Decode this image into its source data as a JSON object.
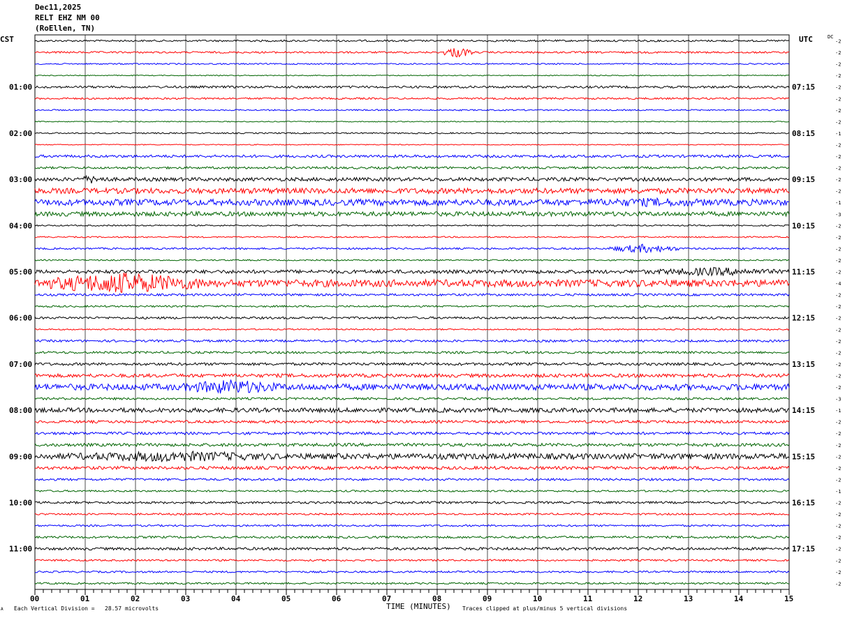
{
  "header": {
    "date": "Dec11,2025",
    "station": "RELT EHZ NM 00",
    "location": "(RoEllen, TN)"
  },
  "left_zone": "CST",
  "right_zone": "UTC",
  "dc_label": "DC",
  "footer": {
    "x_axis_title": "TIME (MINUTES)",
    "scale_note": "Each Vertical Division =   28.57 microvolts",
    "clip_note": "Traces clipped at plus/minus 5 vertical divisions",
    "corner_mark": "A"
  },
  "colors": {
    "trace_cycle": [
      "#000000",
      "#ff0000",
      "#0000ff",
      "#006400"
    ],
    "grid": "#000000",
    "background": "#ffffff"
  },
  "chart_data": {
    "type": "line",
    "title": "RELT EHZ NM 00",
    "xlabel": "TIME (MINUTES)",
    "xlim": [
      0,
      15
    ],
    "x_ticks": [
      "00",
      "01",
      "02",
      "03",
      "04",
      "05",
      "06",
      "07",
      "08",
      "09",
      "10",
      "11",
      "12",
      "13",
      "14",
      "15"
    ],
    "left_hour_labels": [
      "01:00",
      "02:00",
      "03:00",
      "04:00",
      "05:00",
      "06:00",
      "07:00",
      "08:00",
      "09:00",
      "10:00",
      "11:00"
    ],
    "right_hour_labels": [
      "07:15",
      "08:15",
      "09:15",
      "10:15",
      "11:15",
      "12:15",
      "13:15",
      "14:15",
      "15:15",
      "16:15",
      "17:15"
    ],
    "traces_per_hour": 4,
    "minutes_per_trace": 15,
    "trace_count": 48,
    "dc_offsets": [
      -2,
      -2,
      -2,
      -2,
      -2,
      -2,
      -2,
      -2,
      -1,
      -2,
      -2,
      -2,
      -2,
      -2,
      -1,
      -3,
      -2,
      -2,
      -2,
      -2,
      -2,
      -4,
      -2,
      -2,
      -2,
      -2,
      -2,
      -2,
      -2,
      -2,
      -2,
      -3,
      -1,
      -2,
      -2,
      -2,
      -2,
      -2,
      -2,
      -1,
      -2,
      -2,
      -2,
      -2,
      -2,
      -2,
      -2,
      -2
    ],
    "trace_amplitude_divisions": [
      0.4,
      0.4,
      0.3,
      0.2,
      0.5,
      0.4,
      0.3,
      0.2,
      0.3,
      0.2,
      0.6,
      0.5,
      0.8,
      1.2,
      1.4,
      1.0,
      0.3,
      0.3,
      0.4,
      0.3,
      0.8,
      1.6,
      0.5,
      0.4,
      0.5,
      0.3,
      0.5,
      0.5,
      0.6,
      0.8,
      1.4,
      0.5,
      1.0,
      0.6,
      0.6,
      0.7,
      1.3,
      0.7,
      0.5,
      0.4,
      0.5,
      0.4,
      0.4,
      0.5,
      0.6,
      0.4,
      0.4,
      0.4
    ],
    "events": [
      {
        "trace": 1,
        "start_min": 8.1,
        "end_min": 8.7,
        "peak_divisions": 2.5
      },
      {
        "trace": 12,
        "start_min": 0.8,
        "end_min": 1.5,
        "peak_divisions": 2.0
      },
      {
        "trace": 14,
        "start_min": 9.5,
        "end_min": 15.0,
        "peak_divisions": 2.0
      },
      {
        "trace": 18,
        "start_min": 11.4,
        "end_min": 12.8,
        "peak_divisions": 2.0
      },
      {
        "trace": 20,
        "start_min": 12.0,
        "end_min": 15.0,
        "peak_divisions": 2.0
      },
      {
        "trace": 21,
        "start_min": 0.0,
        "end_min": 3.5,
        "peak_divisions": 5.0
      },
      {
        "trace": 30,
        "start_min": 2.8,
        "end_min": 5.0,
        "peak_divisions": 3.5
      },
      {
        "trace": 36,
        "start_min": 0.0,
        "end_min": 5.5,
        "peak_divisions": 2.5
      }
    ],
    "grid": true,
    "legend": "none"
  }
}
